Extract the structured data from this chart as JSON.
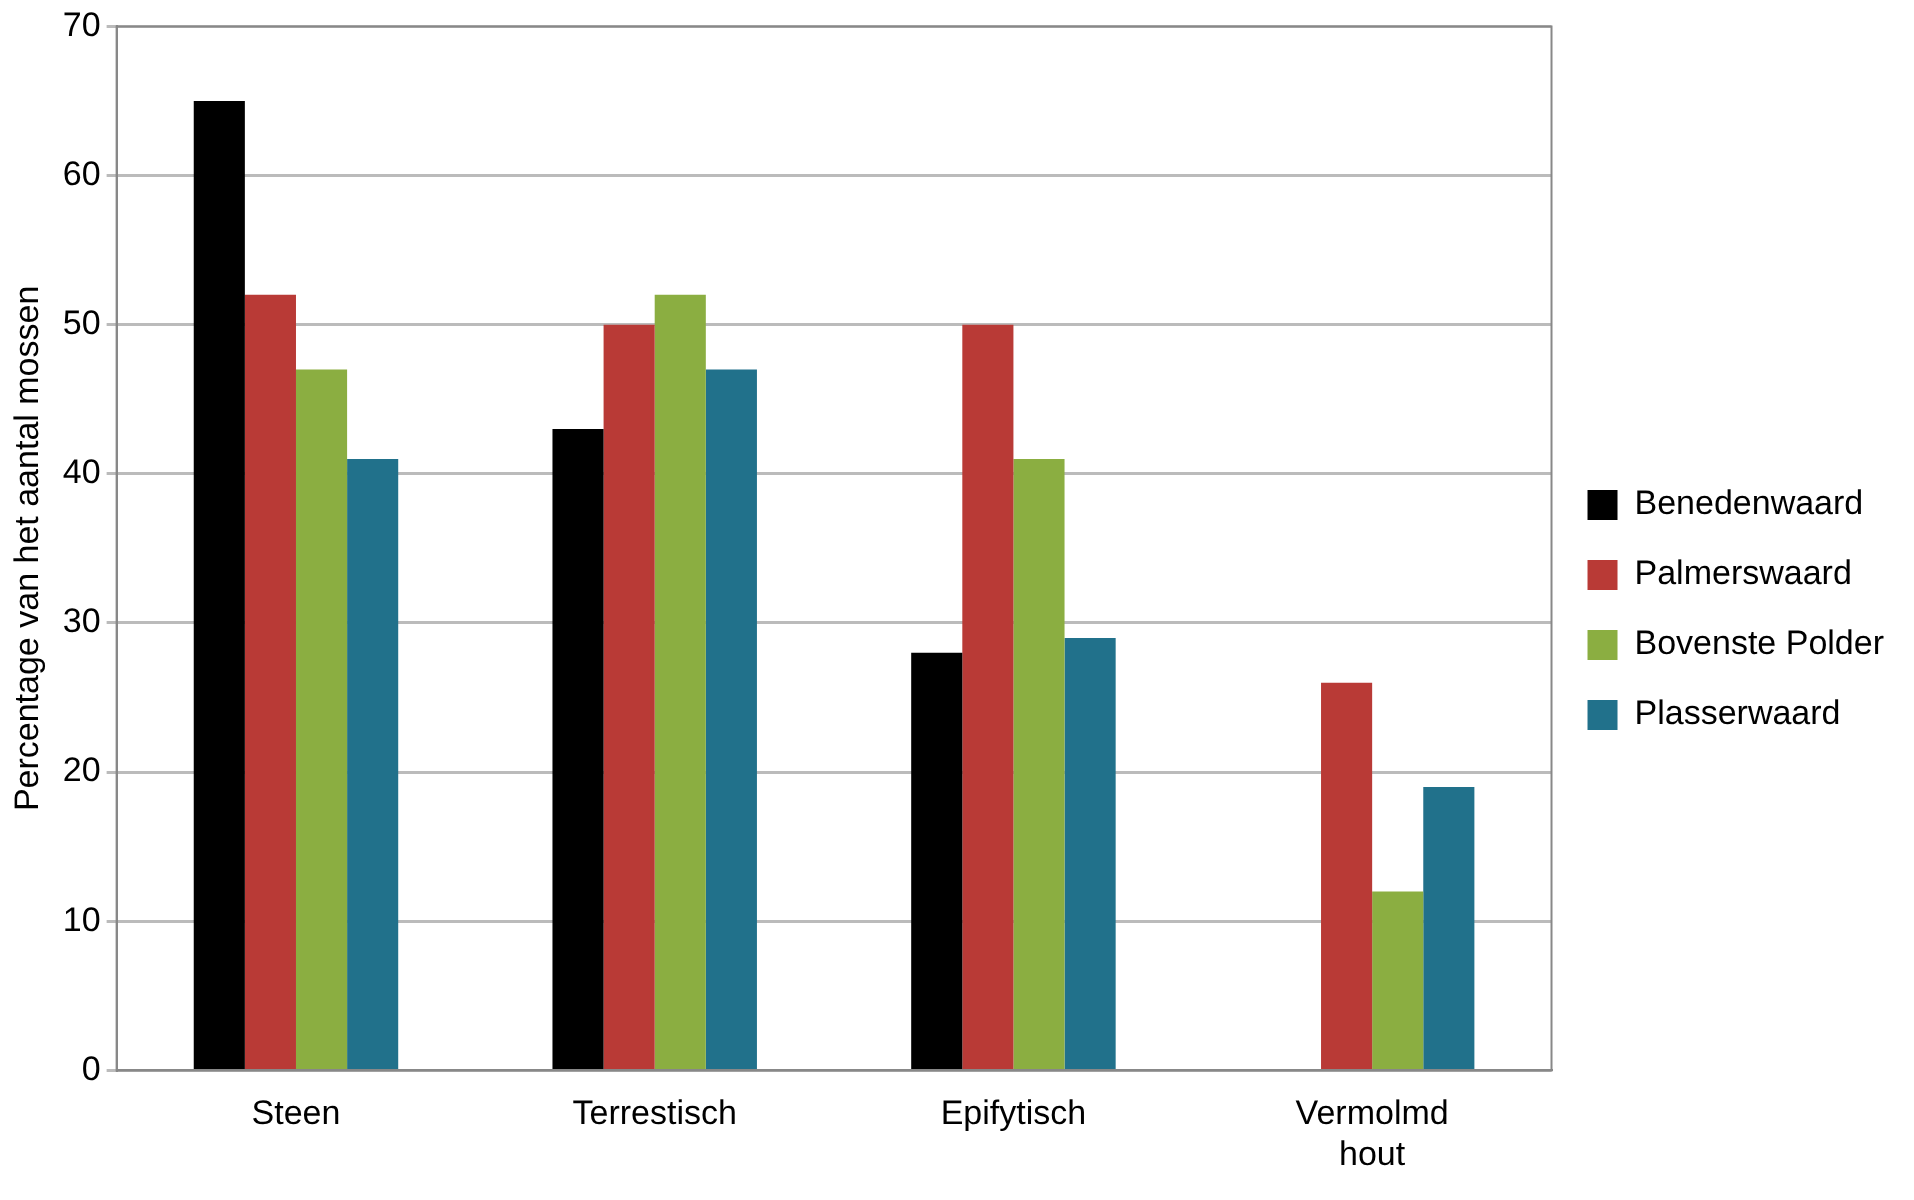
{
  "chart_data": {
    "type": "bar",
    "ylabel": "Percentage van het aantal mossen",
    "categories": [
      "Steen",
      "Terrestisch",
      "Epifytisch",
      "Vermolmd hout"
    ],
    "series": [
      {
        "name": "Benedenwaard",
        "color": "#000000",
        "values": [
          65,
          43,
          28,
          0
        ]
      },
      {
        "name": "Palmerswaard",
        "color": "#b93a36",
        "values": [
          52,
          50,
          50,
          26
        ]
      },
      {
        "name": "Bovenste Polder",
        "color": "#8bae41",
        "values": [
          47,
          52,
          41,
          12
        ]
      },
      {
        "name": "Plasserwaard",
        "color": "#21718b",
        "values": [
          41,
          47,
          29,
          19
        ]
      }
    ],
    "ylim": [
      0,
      70
    ],
    "yticks": [
      0,
      10,
      20,
      30,
      40,
      50,
      60,
      70
    ],
    "grid": "y",
    "legend": "right"
  }
}
